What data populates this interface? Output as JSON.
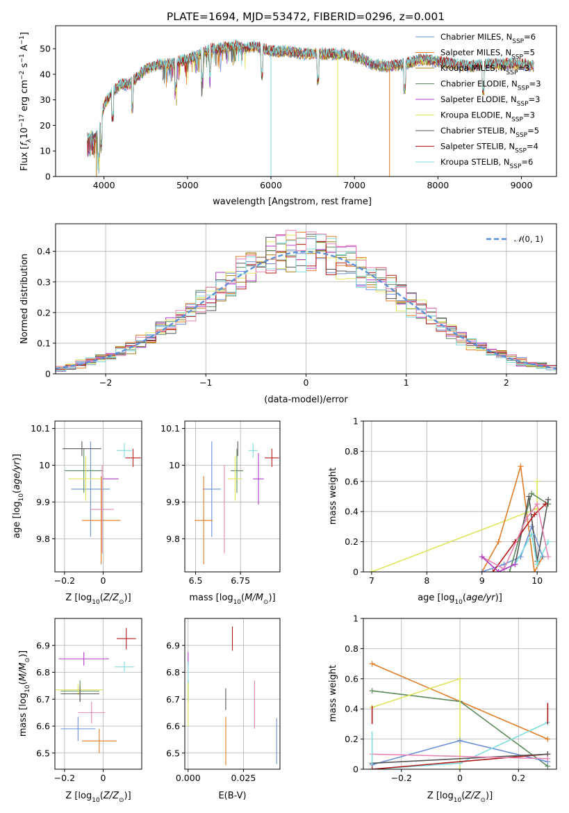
{
  "figure_title": "PLATE=1694, MJD=53472, FIBERID=0296, z=0.001",
  "colors": {
    "Chabrier MILES": "#6a8fd8",
    "Salpeter MILES": "#e07c26",
    "Kroupa MILES": "#a07a10",
    "Chabrier ELODIE": "#5d8a5d",
    "Salpeter ELODIE": "#b03ac8",
    "Kroupa ELODIE": "#dfe55b",
    "Chabrier STELIB": "#555555",
    "Salpeter STELIB": "#b01818",
    "Kroupa STELIB": "#7fdcdc",
    "pink": "#e884b2",
    "gauss": "#5b8fd8"
  },
  "chart_data": [
    {
      "id": "spectrum",
      "type": "line",
      "xlabel": "wavelength [Angstrom, rest frame]",
      "ylabel": "Flux [f_λ10^-17 erg cm^-2 s^-1 A^-1]",
      "xlim": [
        3420,
        9420
      ],
      "ylim": [
        0,
        59
      ],
      "xticks": [
        4000,
        5000,
        6000,
        7000,
        8000,
        9000
      ],
      "yticks": [
        0,
        10,
        20,
        30,
        40,
        50
      ],
      "grid": false,
      "legend_position": "top-right",
      "legend": [
        "Chabrier MILES, N_SSP=6",
        "Salpeter MILES, N_SSP=5",
        "Kroupa MILES, N_SSP=3",
        "Chabrier ELODIE, N_SSP=3",
        "Salpeter ELODIE, N_SSP=3",
        "Kroupa ELODIE, N_SSP=3",
        "Chabrier STELIB, N_SSP=5",
        "Salpeter STELIB, N_SSP=4",
        "Kroupa STELIB, N_SSP=6"
      ],
      "continuum": {
        "x": [
          3800,
          3850,
          3900,
          3950,
          4000,
          4100,
          4200,
          4300,
          4400,
          4500,
          4600,
          4700,
          4800,
          4900,
          5000,
          5100,
          5200,
          5300,
          5400,
          5500,
          5600,
          5700,
          5800,
          5900,
          6000,
          6200,
          6400,
          6600,
          6800,
          7000,
          7100,
          7200,
          7400,
          7600,
          7800,
          8000,
          8200,
          8400,
          8600,
          8800,
          9000,
          9150
        ],
        "y": [
          15,
          16,
          15,
          19,
          28,
          33,
          36,
          36,
          39,
          42,
          43,
          44,
          44,
          45,
          46,
          47,
          49,
          50,
          50,
          51,
          51,
          50,
          51,
          50,
          49,
          49,
          48,
          48,
          48,
          47,
          46,
          44,
          43,
          44,
          46,
          45,
          44,
          43,
          44,
          44,
          44,
          43
        ]
      },
      "spikes": [
        {
          "x": 3910,
          "y": 0,
          "series": "Kroupa MILES"
        },
        {
          "x": 6000,
          "y": 0,
          "series": "Kroupa STELIB"
        },
        {
          "x": 6800,
          "y": 0,
          "series": "Kroupa ELODIE"
        },
        {
          "x": 7420,
          "y": 0,
          "series": "Salpeter MILES"
        }
      ]
    },
    {
      "id": "residuals",
      "type": "histogram",
      "xlabel": "(data-model)/error",
      "ylabel": "Normed distribution",
      "xlim": [
        -2.5,
        2.5
      ],
      "ylim": [
        0,
        0.49
      ],
      "xticks": [
        -2,
        -1,
        0,
        1,
        2
      ],
      "yticks": [
        0.0,
        0.1,
        0.2,
        0.3,
        0.4
      ],
      "grid": true,
      "legend_position": "top-right",
      "legend_label": "N(0,1)",
      "bin_width": 0.1,
      "bin_start": -2.5
    },
    {
      "id": "age_vs_Z",
      "type": "errorbar",
      "xlabel": "Z [log10(Z/Z_sun)]",
      "ylabel": "age [log10(age/yr)]",
      "xlim": [
        -0.25,
        0.2
      ],
      "ylim": [
        9.71,
        10.12
      ],
      "xticks": [
        -0.2,
        0.0
      ],
      "yticks": [
        9.8,
        9.9,
        10.0,
        10.1
      ],
      "grid": true,
      "points": [
        {
          "x": -0.065,
          "xerr": 0.1,
          "y": 9.935,
          "yerr": 0.13,
          "c": "Chabrier MILES"
        },
        {
          "x": -0.01,
          "xerr": 0.1,
          "y": 9.85,
          "yerr": 0.12,
          "c": "Salpeter MILES"
        },
        {
          "x": -0.1,
          "xerr": 0.1,
          "y": 9.985,
          "yerr": 0.06,
          "c": "Chabrier ELODIE"
        },
        {
          "x": 0.03,
          "xerr": 0.05,
          "y": 9.963,
          "yerr": 0.0,
          "c": "Salpeter ELODIE"
        },
        {
          "x": -0.09,
          "xerr": 0.09,
          "y": 9.963,
          "yerr": 0.06,
          "c": "Kroupa ELODIE"
        },
        {
          "x": -0.11,
          "xerr": 0.1,
          "y": 10.045,
          "yerr": 0.02,
          "c": "Chabrier STELIB"
        },
        {
          "x": 0.155,
          "xerr": 0.04,
          "y": 10.02,
          "yerr": 0.025,
          "c": "Salpeter STELIB"
        },
        {
          "x": 0.11,
          "xerr": 0.04,
          "y": 10.04,
          "yerr": 0.02,
          "c": "Kroupa STELIB"
        },
        {
          "x": -0.005,
          "xerr": 0.06,
          "y": 9.88,
          "yerr": 0.12,
          "c": "pink"
        }
      ]
    },
    {
      "id": "age_vs_mass",
      "type": "errorbar",
      "xlabel": "mass [log10(M/M_sun)]",
      "ylabel": "",
      "xlim": [
        6.44,
        6.97
      ],
      "ylim": [
        9.71,
        10.12
      ],
      "xticks": [
        6.5,
        6.75
      ],
      "yticks": [
        9.8,
        9.9,
        10.0,
        10.1
      ],
      "grid": true,
      "points": [
        {
          "x": 6.59,
          "xerr": 0.05,
          "y": 9.935,
          "yerr": 0.13,
          "c": "Chabrier MILES"
        },
        {
          "x": 6.545,
          "xerr": 0.05,
          "y": 9.85,
          "yerr": 0.12,
          "c": "Salpeter MILES"
        },
        {
          "x": 6.73,
          "xerr": 0.035,
          "y": 9.985,
          "yerr": 0.06,
          "c": "Chabrier ELODIE"
        },
        {
          "x": 6.85,
          "xerr": 0.03,
          "y": 9.963,
          "yerr": 0.07,
          "c": "Salpeter ELODIE"
        },
        {
          "x": 6.72,
          "xerr": 0.04,
          "y": 9.963,
          "yerr": 0.06,
          "c": "Kroupa ELODIE"
        },
        {
          "x": 6.735,
          "xerr": 0.0,
          "y": 10.045,
          "yerr": 0.02,
          "c": "Chabrier STELIB"
        },
        {
          "x": 6.925,
          "xerr": 0.04,
          "y": 10.02,
          "yerr": 0.025,
          "c": "Salpeter STELIB"
        },
        {
          "x": 6.82,
          "xerr": 0.025,
          "y": 10.04,
          "yerr": 0.02,
          "c": "Kroupa STELIB"
        },
        {
          "x": 6.66,
          "xerr": 0.0,
          "y": 9.88,
          "yerr": 0.12,
          "c": "pink"
        }
      ]
    },
    {
      "id": "massweight_vs_age",
      "type": "line",
      "xlabel": "age [log10(age/yr)]",
      "ylabel": "mass weight",
      "xlim": [
        6.85,
        10.35
      ],
      "ylim": [
        0.0,
        1.0
      ],
      "xticks": [
        7,
        8,
        9,
        10
      ],
      "yticks": [
        0.0,
        0.2,
        0.4,
        0.6,
        0.8,
        1.0
      ],
      "grid": true,
      "series": [
        {
          "c": "Kroupa ELODIE",
          "x": [
            7.0,
            10.0,
            10.0
          ],
          "y": [
            0.0,
            0.42,
            0.6
          ]
        },
        {
          "c": "Salpeter MILES",
          "x": [
            9.0,
            9.3,
            9.7,
            9.95,
            10.1
          ],
          "y": [
            0.0,
            0.2,
            0.7,
            0.0,
            0.1
          ]
        },
        {
          "c": "Chabrier MILES",
          "x": [
            9.0,
            9.4,
            9.7,
            9.9,
            10.1
          ],
          "y": [
            0.0,
            0.05,
            0.1,
            0.3,
            0.1
          ]
        },
        {
          "c": "Chabrier ELODIE",
          "x": [
            9.5,
            9.9,
            10.2
          ],
          "y": [
            0.0,
            0.52,
            0.45
          ]
        },
        {
          "c": "Chabrier STELIB",
          "x": [
            9.6,
            9.85,
            10.0,
            10.2
          ],
          "y": [
            0.05,
            0.5,
            0.07,
            0.48
          ]
        },
        {
          "c": "Salpeter STELIB",
          "x": [
            9.2,
            9.6,
            9.95,
            10.15
          ],
          "y": [
            0.0,
            0.2,
            0.38,
            0.45
          ]
        },
        {
          "c": "Kroupa STELIB",
          "x": [
            9.3,
            9.6,
            9.9,
            10.0,
            10.2
          ],
          "y": [
            0.0,
            0.05,
            0.25,
            0.05,
            0.2
          ]
        },
        {
          "c": "pink",
          "x": [
            9.0,
            9.4,
            9.8,
            10.0,
            10.2
          ],
          "y": [
            0.1,
            0.02,
            0.35,
            0.45,
            0.1
          ]
        },
        {
          "c": "Salpeter ELODIE",
          "x": [
            9.0,
            9.3,
            9.6
          ],
          "y": [
            0.1,
            0.0,
            0.05
          ]
        }
      ]
    },
    {
      "id": "mass_vs_Z",
      "type": "errorbar",
      "xlabel": "Z [log10(Z/Z_sun)]",
      "ylabel": "mass [log10(M/M_sun)]",
      "xlim": [
        -0.25,
        0.2
      ],
      "ylim": [
        6.44,
        7.0
      ],
      "xticks": [
        -0.2,
        0.0
      ],
      "yticks": [
        6.5,
        6.6,
        6.7,
        6.8,
        6.9
      ],
      "grid": true,
      "points": [
        {
          "x": -0.13,
          "xerr": 0.09,
          "y": 6.59,
          "yerr": 0.045,
          "c": "Chabrier MILES"
        },
        {
          "x": -0.02,
          "xerr": 0.09,
          "y": 6.545,
          "yerr": 0.045,
          "c": "Salpeter MILES"
        },
        {
          "x": -0.12,
          "xerr": 0.1,
          "y": 6.73,
          "yerr": 0.04,
          "c": "Chabrier ELODIE"
        },
        {
          "x": -0.1,
          "xerr": 0.13,
          "y": 6.85,
          "yerr": 0.025,
          "c": "Salpeter ELODIE"
        },
        {
          "x": -0.13,
          "xerr": 0.13,
          "y": 6.735,
          "yerr": 0.02,
          "c": "Kroupa ELODIE"
        },
        {
          "x": -0.12,
          "xerr": 0.1,
          "y": 6.72,
          "yerr": 0.03,
          "c": "Chabrier STELIB"
        },
        {
          "x": 0.12,
          "xerr": 0.05,
          "y": 6.925,
          "yerr": 0.04,
          "c": "Salpeter STELIB"
        },
        {
          "x": 0.11,
          "xerr": 0.05,
          "y": 6.82,
          "yerr": 0.02,
          "c": "Kroupa STELIB"
        },
        {
          "x": -0.06,
          "xerr": 0.07,
          "y": 6.65,
          "yerr": 0.04,
          "c": "pink"
        }
      ]
    },
    {
      "id": "mass_vs_EBV",
      "type": "errorbar",
      "xlabel": "E(B-V)",
      "ylabel": "",
      "xlim": [
        -0.0015,
        0.0415
      ],
      "ylim": [
        6.44,
        7.0
      ],
      "xticks": [
        0.0,
        0.025
      ],
      "xtick_labels": [
        "0.000",
        "0.025"
      ],
      "yticks": [
        6.5,
        6.6,
        6.7,
        6.8,
        6.9
      ],
      "grid": true,
      "points": [
        {
          "x": 0.04,
          "y": 6.545,
          "yerr": 0.085,
          "c": "Chabrier MILES"
        },
        {
          "x": 0.017,
          "y": 6.545,
          "yerr": 0.09,
          "c": "Salpeter MILES"
        },
        {
          "x": 0.0,
          "y": 6.73,
          "yerr": 0.04,
          "c": "Chabrier ELODIE"
        },
        {
          "x": 0.0,
          "y": 6.85,
          "yerr": 0.025,
          "c": "Salpeter ELODIE"
        },
        {
          "x": 0.0,
          "y": 6.68,
          "yerr": 0.08,
          "c": "Kroupa ELODIE"
        },
        {
          "x": 0.017,
          "y": 6.7,
          "yerr": 0.04,
          "c": "Chabrier STELIB"
        },
        {
          "x": 0.02,
          "y": 6.925,
          "yerr": 0.045,
          "c": "Salpeter STELIB"
        },
        {
          "x": 0.0,
          "y": 6.8,
          "yerr": 0.04,
          "c": "Kroupa STELIB"
        },
        {
          "x": 0.03,
          "y": 6.68,
          "yerr": 0.09,
          "c": "pink"
        }
      ]
    },
    {
      "id": "massweight_vs_Z",
      "type": "line",
      "xlabel": "Z [log10(Z/Z_sun)]",
      "ylabel": "mass weight",
      "xlim": [
        -0.33,
        0.33
      ],
      "ylim": [
        0.0,
        1.0
      ],
      "xticks": [
        -0.2,
        0.0,
        0.2
      ],
      "yticks": [
        0.0,
        0.2,
        0.4,
        0.6,
        0.8,
        1.0
      ],
      "grid": true,
      "series": [
        {
          "c": "Salpeter MILES",
          "x": [
            -0.3,
            0.3
          ],
          "y": [
            0.7,
            0.2
          ]
        },
        {
          "c": "Chabrier ELODIE",
          "x": [
            -0.3,
            0.0,
            0.3
          ],
          "y": [
            0.52,
            0.45,
            0.02
          ]
        },
        {
          "c": "Kroupa ELODIE",
          "x": [
            -0.3,
            0.0,
            0.0
          ],
          "y": [
            0.41,
            0.6,
            0.0
          ]
        },
        {
          "c": "Chabrier MILES",
          "x": [
            -0.3,
            0.0,
            0.3
          ],
          "y": [
            0.03,
            0.19,
            0.05
          ]
        },
        {
          "c": "Kroupa STELIB",
          "x": [
            -0.3,
            0.0,
            0.3
          ],
          "y": [
            0.0,
            0.04,
            0.31
          ]
        },
        {
          "c": "Salpeter STELIB",
          "x": [
            -0.3,
            0.3
          ],
          "y": [
            0.0,
            0.1
          ]
        },
        {
          "c": "Chabrier STELIB",
          "x": [
            -0.3,
            0.3
          ],
          "y": [
            0.04,
            0.1
          ]
        },
        {
          "c": "pink",
          "x": [
            -0.3,
            0.3
          ],
          "y": [
            0.1,
            0.07
          ]
        }
      ],
      "verticals": [
        {
          "c": "Salpeter STELIB",
          "x": 0.3,
          "y0": 0.3,
          "y1": 0.44
        },
        {
          "c": "Salpeter STELIB",
          "x": -0.3,
          "y0": 0.3,
          "y1": 0.42
        },
        {
          "c": "Kroupa STELIB",
          "x": -0.3,
          "y0": 0.03,
          "y1": 0.25
        }
      ]
    }
  ]
}
